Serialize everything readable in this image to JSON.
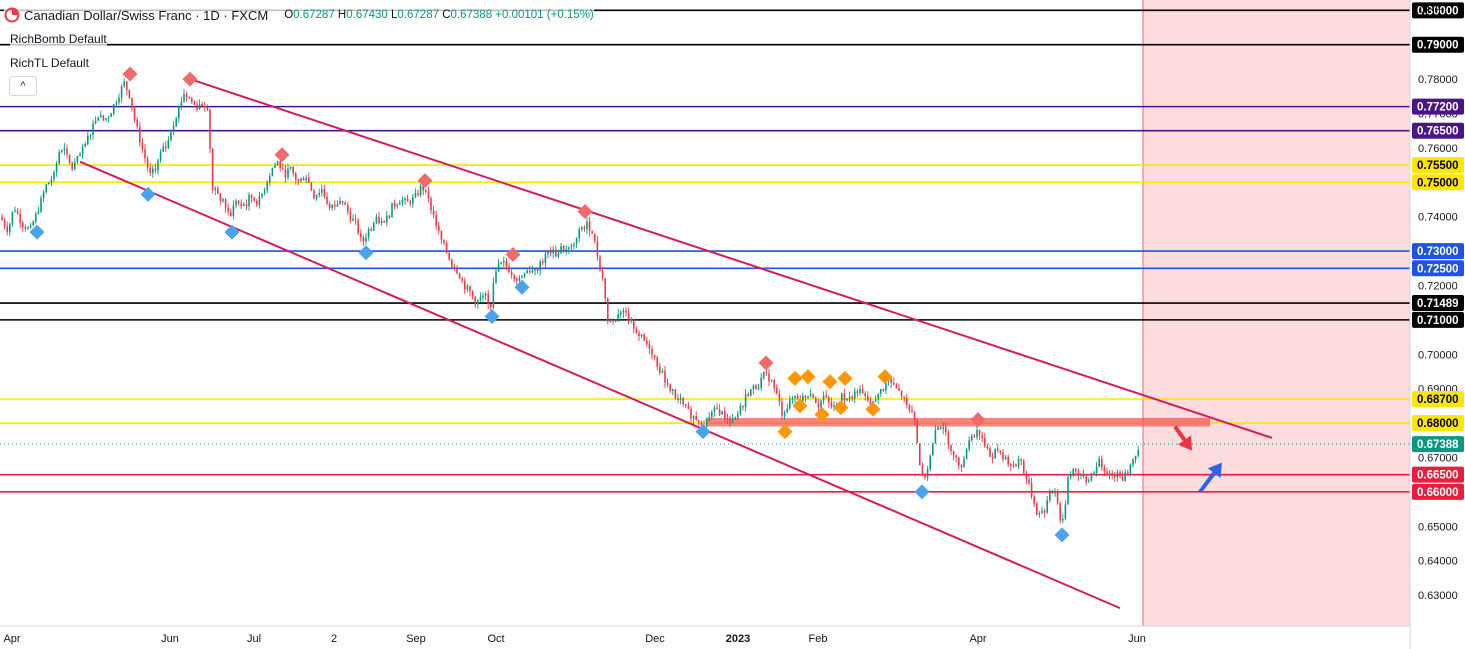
{
  "header": {
    "title": "Canadian Dollar/Swiss Franc · 1D · FXCM",
    "open_label": "O",
    "open": "0.67287",
    "high_label": "H",
    "high": "0.67430",
    "low_label": "L",
    "low": "0.67287",
    "close_label": "C",
    "close": "0.67388",
    "change": "+0.00101 (+0.15%)"
  },
  "indicators": [
    "RichBomb Default",
    "RichTL Default"
  ],
  "collapse_glyph": "^",
  "currency": "CHF",
  "colors": {
    "bull": "#089981",
    "bear": "#f23645",
    "black_line": "#000000",
    "purple_line": "#4a148c",
    "yellow_line": "#ffe500",
    "blue_line": "#1e53e5",
    "red_line": "#e91e3c",
    "channel": "#d81b60",
    "zone": "#ef5350",
    "future_shade": "#fcdcdc",
    "marker_red": "#f06b6b",
    "marker_blue": "#4aa3ee",
    "marker_orange": "#ff9800",
    "arrow_red": "#ef3340",
    "arrow_blue": "#2f62e6"
  },
  "chart_data": {
    "type": "candlestick",
    "symbol": "CADCHF",
    "timeframe": "1D",
    "ylim": [
      0.621,
      0.803
    ],
    "price_ticks": [
      "0.63000",
      "0.64000",
      "0.65000",
      "0.66000",
      "0.67000",
      "0.68000",
      "0.69000",
      "0.70000",
      "0.71000",
      "0.72000",
      "0.73000",
      "0.74000",
      "0.75000",
      "0.76000",
      "0.77000",
      "0.78000"
    ],
    "time_labels": [
      "Apr",
      "Jun",
      "Jul",
      "2",
      "Sep",
      "Oct",
      "Dec",
      "2023",
      "Feb",
      "Apr",
      "Jun"
    ],
    "horizontal_levels": [
      {
        "value": 0.8,
        "label": "0.80000",
        "color": "black"
      },
      {
        "value": 0.79,
        "label": "0.79000",
        "color": "black"
      },
      {
        "value": 0.772,
        "label": "0.77200",
        "color": "purple"
      },
      {
        "value": 0.765,
        "label": "0.76500",
        "color": "purple"
      },
      {
        "value": 0.755,
        "label": "0.75500",
        "color": "yellow"
      },
      {
        "value": 0.75,
        "label": "0.75000",
        "color": "yellow"
      },
      {
        "value": 0.73,
        "label": "0.73000",
        "color": "blue"
      },
      {
        "value": 0.725,
        "label": "0.72500",
        "color": "blue"
      },
      {
        "value": 0.71489,
        "label": "0.71489",
        "color": "black"
      },
      {
        "value": 0.71,
        "label": "0.71000",
        "color": "black"
      },
      {
        "value": 0.687,
        "label": "0.68700",
        "color": "yellow"
      },
      {
        "value": 0.68,
        "label": "0.68000",
        "color": "yellow"
      },
      {
        "value": 0.665,
        "label": "0.66500",
        "color": "red"
      },
      {
        "value": 0.66,
        "label": "0.66000",
        "color": "red"
      }
    ],
    "last_price": {
      "value": 0.67388,
      "label": "0.67388"
    },
    "close_path": [
      [
        0,
        0.74
      ],
      [
        8,
        0.736
      ],
      [
        14,
        0.743
      ],
      [
        22,
        0.738
      ],
      [
        30,
        0.736
      ],
      [
        38,
        0.742
      ],
      [
        46,
        0.749
      ],
      [
        54,
        0.752
      ],
      [
        60,
        0.76
      ],
      [
        66,
        0.758
      ],
      [
        72,
        0.754
      ],
      [
        78,
        0.757
      ],
      [
        84,
        0.76
      ],
      [
        92,
        0.766
      ],
      [
        98,
        0.77
      ],
      [
        104,
        0.768
      ],
      [
        110,
        0.77
      ],
      [
        118,
        0.775
      ],
      [
        124,
        0.779
      ],
      [
        130,
        0.775
      ],
      [
        134,
        0.769
      ],
      [
        140,
        0.762
      ],
      [
        146,
        0.756
      ],
      [
        150,
        0.752
      ],
      [
        156,
        0.754
      ],
      [
        160,
        0.758
      ],
      [
        166,
        0.761
      ],
      [
        172,
        0.766
      ],
      [
        178,
        0.771
      ],
      [
        184,
        0.776
      ],
      [
        190,
        0.774
      ],
      [
        196,
        0.772
      ],
      [
        202,
        0.773
      ],
      [
        208,
        0.772
      ],
      [
        212,
        0.748
      ],
      [
        218,
        0.746
      ],
      [
        224,
        0.744
      ],
      [
        230,
        0.74
      ],
      [
        236,
        0.745
      ],
      [
        242,
        0.742
      ],
      [
        250,
        0.746
      ],
      [
        258,
        0.744
      ],
      [
        264,
        0.748
      ],
      [
        272,
        0.754
      ],
      [
        278,
        0.756
      ],
      [
        284,
        0.752
      ],
      [
        290,
        0.754
      ],
      [
        298,
        0.75
      ],
      [
        306,
        0.752
      ],
      [
        314,
        0.746
      ],
      [
        322,
        0.748
      ],
      [
        330,
        0.742
      ],
      [
        336,
        0.744
      ],
      [
        342,
        0.745
      ],
      [
        350,
        0.74
      ],
      [
        356,
        0.738
      ],
      [
        362,
        0.732
      ],
      [
        368,
        0.736
      ],
      [
        376,
        0.739
      ],
      [
        384,
        0.738
      ],
      [
        392,
        0.743
      ],
      [
        400,
        0.745
      ],
      [
        408,
        0.744
      ],
      [
        416,
        0.746
      ],
      [
        422,
        0.749
      ],
      [
        428,
        0.745
      ],
      [
        434,
        0.74
      ],
      [
        440,
        0.734
      ],
      [
        446,
        0.73
      ],
      [
        452,
        0.726
      ],
      [
        458,
        0.724
      ],
      [
        464,
        0.72
      ],
      [
        470,
        0.718
      ],
      [
        476,
        0.715
      ],
      [
        484,
        0.717
      ],
      [
        490,
        0.713
      ],
      [
        496,
        0.725
      ],
      [
        502,
        0.727
      ],
      [
        508,
        0.725
      ],
      [
        514,
        0.723
      ],
      [
        520,
        0.722
      ],
      [
        526,
        0.725
      ],
      [
        532,
        0.724
      ],
      [
        538,
        0.726
      ],
      [
        544,
        0.728
      ],
      [
        550,
        0.73
      ],
      [
        556,
        0.729
      ],
      [
        562,
        0.731
      ],
      [
        568,
        0.73
      ],
      [
        574,
        0.732
      ],
      [
        580,
        0.736
      ],
      [
        586,
        0.738
      ],
      [
        592,
        0.736
      ],
      [
        598,
        0.728
      ],
      [
        604,
        0.72
      ],
      [
        608,
        0.709
      ],
      [
        614,
        0.71
      ],
      [
        620,
        0.713
      ],
      [
        626,
        0.712
      ],
      [
        632,
        0.709
      ],
      [
        638,
        0.706
      ],
      [
        644,
        0.704
      ],
      [
        650,
        0.702
      ],
      [
        656,
        0.698
      ],
      [
        662,
        0.694
      ],
      [
        668,
        0.691
      ],
      [
        674,
        0.688
      ],
      [
        680,
        0.686
      ],
      [
        686,
        0.684
      ],
      [
        692,
        0.682
      ],
      [
        698,
        0.681
      ],
      [
        704,
        0.68
      ],
      [
        710,
        0.682
      ],
      [
        716,
        0.684
      ],
      [
        722,
        0.683
      ],
      [
        728,
        0.681
      ],
      [
        734,
        0.68
      ],
      [
        740,
        0.684
      ],
      [
        746,
        0.688
      ],
      [
        752,
        0.69
      ],
      [
        758,
        0.691
      ],
      [
        764,
        0.694
      ],
      [
        770,
        0.693
      ],
      [
        776,
        0.689
      ],
      [
        782,
        0.683
      ],
      [
        788,
        0.685
      ],
      [
        794,
        0.688
      ],
      [
        800,
        0.687
      ],
      [
        806,
        0.688
      ],
      [
        812,
        0.689
      ],
      [
        818,
        0.685
      ],
      [
        824,
        0.688
      ],
      [
        830,
        0.685
      ],
      [
        836,
        0.684
      ],
      [
        842,
        0.688
      ],
      [
        848,
        0.686
      ],
      [
        854,
        0.69
      ],
      [
        860,
        0.689
      ],
      [
        866,
        0.687
      ],
      [
        872,
        0.685
      ],
      [
        878,
        0.688
      ],
      [
        884,
        0.691
      ],
      [
        890,
        0.692
      ],
      [
        896,
        0.69
      ],
      [
        902,
        0.688
      ],
      [
        908,
        0.685
      ],
      [
        914,
        0.683
      ],
      [
        918,
        0.672
      ],
      [
        922,
        0.664
      ],
      [
        926,
        0.665
      ],
      [
        930,
        0.67
      ],
      [
        936,
        0.678
      ],
      [
        942,
        0.68
      ],
      [
        948,
        0.675
      ],
      [
        954,
        0.67
      ],
      [
        960,
        0.668
      ],
      [
        966,
        0.672
      ],
      [
        972,
        0.676
      ],
      [
        978,
        0.678
      ],
      [
        984,
        0.674
      ],
      [
        990,
        0.671
      ],
      [
        996,
        0.672
      ],
      [
        1002,
        0.67
      ],
      [
        1008,
        0.669
      ],
      [
        1014,
        0.668
      ],
      [
        1020,
        0.67
      ],
      [
        1026,
        0.664
      ],
      [
        1032,
        0.659
      ],
      [
        1038,
        0.653
      ],
      [
        1044,
        0.655
      ],
      [
        1050,
        0.659
      ],
      [
        1056,
        0.661
      ],
      [
        1060,
        0.652
      ],
      [
        1064,
        0.652
      ],
      [
        1068,
        0.664
      ],
      [
        1074,
        0.667
      ],
      [
        1080,
        0.665
      ],
      [
        1086,
        0.663
      ],
      [
        1092,
        0.665
      ],
      [
        1098,
        0.669
      ],
      [
        1104,
        0.667
      ],
      [
        1110,
        0.665
      ],
      [
        1116,
        0.666
      ],
      [
        1122,
        0.664
      ],
      [
        1128,
        0.666
      ],
      [
        1134,
        0.67
      ],
      [
        1140,
        0.6739
      ]
    ],
    "channel_lines": [
      {
        "from": [
          190,
          0.78
        ],
        "to": [
          1272,
          0.6757
        ]
      },
      {
        "from": [
          80,
          0.756
        ],
        "to": [
          1120,
          0.6262
        ]
      }
    ],
    "zone": {
      "x_from": 706,
      "x_to": 1210,
      "y_top": 0.6815,
      "y_bottom": 0.679
    },
    "future_x": 1143,
    "markers": [
      {
        "x": 130,
        "y": 0.7815,
        "kind": "top"
      },
      {
        "x": 190,
        "y": 0.78,
        "kind": "top"
      },
      {
        "x": 282,
        "y": 0.758,
        "kind": "top"
      },
      {
        "x": 425,
        "y": 0.7505,
        "kind": "top"
      },
      {
        "x": 513,
        "y": 0.729,
        "kind": "top"
      },
      {
        "x": 585,
        "y": 0.7415,
        "kind": "top"
      },
      {
        "x": 766,
        "y": 0.6975,
        "kind": "top"
      },
      {
        "x": 978,
        "y": 0.681,
        "kind": "top"
      },
      {
        "x": 37,
        "y": 0.7355,
        "kind": "bottom"
      },
      {
        "x": 148,
        "y": 0.7465,
        "kind": "bottom"
      },
      {
        "x": 232,
        "y": 0.7355,
        "kind": "bottom"
      },
      {
        "x": 366,
        "y": 0.7295,
        "kind": "bottom"
      },
      {
        "x": 492,
        "y": 0.711,
        "kind": "bottom"
      },
      {
        "x": 522,
        "y": 0.7195,
        "kind": "bottom"
      },
      {
        "x": 703,
        "y": 0.6775,
        "kind": "bottom"
      },
      {
        "x": 922,
        "y": 0.66,
        "kind": "bottom"
      },
      {
        "x": 1062,
        "y": 0.6475,
        "kind": "bottom"
      },
      {
        "x": 785,
        "y": 0.6775,
        "kind": "alt"
      },
      {
        "x": 795,
        "y": 0.693,
        "kind": "alt"
      },
      {
        "x": 800,
        "y": 0.685,
        "kind": "alt"
      },
      {
        "x": 808,
        "y": 0.6935,
        "kind": "alt"
      },
      {
        "x": 822,
        "y": 0.6825,
        "kind": "alt"
      },
      {
        "x": 830,
        "y": 0.692,
        "kind": "alt"
      },
      {
        "x": 841,
        "y": 0.6845,
        "kind": "alt"
      },
      {
        "x": 845,
        "y": 0.693,
        "kind": "alt"
      },
      {
        "x": 873,
        "y": 0.684,
        "kind": "alt"
      },
      {
        "x": 885,
        "y": 0.6935,
        "kind": "alt"
      }
    ],
    "arrows": [
      {
        "kind": "down",
        "from": [
          1175,
          0.679
        ],
        "to": [
          1192,
          0.672
        ]
      },
      {
        "kind": "up",
        "from": [
          1200,
          0.66
        ],
        "to": [
          1222,
          0.6685
        ]
      }
    ]
  }
}
